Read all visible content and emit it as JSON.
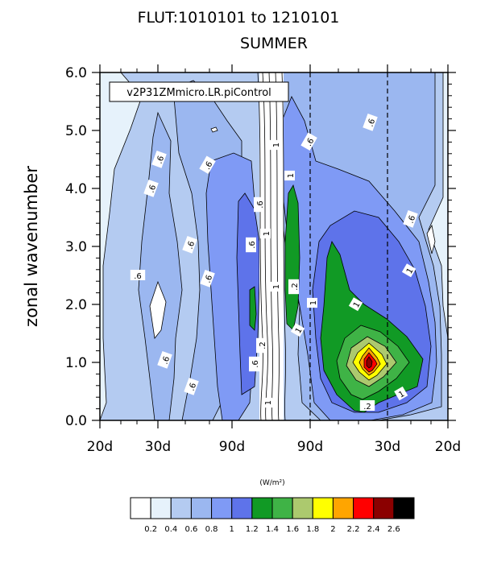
{
  "title_line1": "FLUT:1010101 to 1210101",
  "title_line2": "SUMMER",
  "legend_label": "v2P31ZMmicro.LR.piControl",
  "colorbar_units": "(W/m²)",
  "chart_data": {
    "type": "contour",
    "title": "FLUT:1010101 to 1210101",
    "subtitle": "SUMMER",
    "ylabel": "zonal wavenumber",
    "xlabel": "",
    "ylim": [
      0,
      6
    ],
    "y_ticks": [
      "0.0",
      "1.0",
      "2.0",
      "3.0",
      "4.0",
      "5.0",
      "6.0"
    ],
    "x_tick_labels": [
      "20d",
      "30d",
      "90d",
      "90d",
      "30d",
      "20d"
    ],
    "dashed_reference_labels": [
      "90d",
      "30d"
    ],
    "contour_labels": [
      ".6",
      ".6",
      ".6",
      ".6",
      ".6",
      ".6",
      ".6",
      ".6",
      ".6",
      ".6",
      ".6",
      ".6",
      ".6",
      ".6",
      "1",
      "1",
      "1",
      "1",
      "1",
      "1",
      "1",
      "1",
      "1",
      "1",
      ".2",
      ".2",
      ".2",
      ".2",
      ".6",
      "1.4",
      "1.4"
    ],
    "colorbar": {
      "levels": [
        "0.2",
        "0.4",
        "0.6",
        "0.8",
        "1",
        "1.2",
        "1.4",
        "1.6",
        "1.8",
        "2",
        "2.2",
        "2.4",
        "2.6"
      ],
      "colors": [
        "#ffffff",
        "#e6f2fb",
        "#b4cbf1",
        "#9bb7f0",
        "#7f9af5",
        "#5e73ea",
        "#119a25",
        "#3fb346",
        "#acc96e",
        "#ffff00",
        "#ffa500",
        "#ff0000",
        "#8b0000",
        "#000000"
      ]
    },
    "max_value_location": {
      "y": 1.0,
      "value": 2.5
    }
  }
}
